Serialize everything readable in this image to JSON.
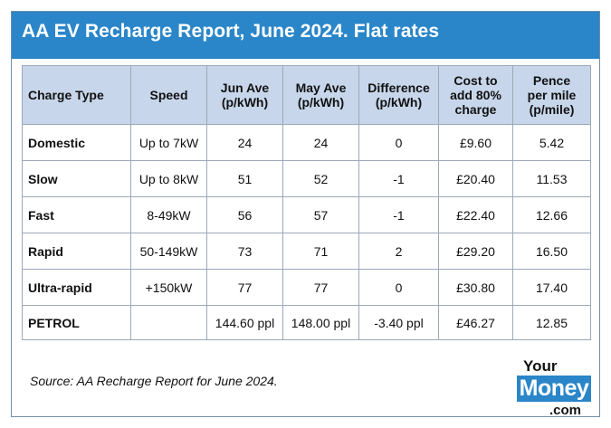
{
  "title": "AA EV Recharge Report, June 2024. Flat rates",
  "table": {
    "headers": [
      {
        "lines": [
          "Charge Type"
        ]
      },
      {
        "lines": [
          "Speed"
        ]
      },
      {
        "lines": [
          "Jun Ave",
          "(p/kWh)"
        ]
      },
      {
        "lines": [
          "May Ave",
          "(p/kWh)"
        ]
      },
      {
        "lines": [
          "Difference",
          "(p/kWh)"
        ]
      },
      {
        "lines": [
          "Cost to",
          "add 80%",
          "charge"
        ]
      },
      {
        "lines": [
          "Pence",
          "per mile",
          "(p/mile)"
        ]
      }
    ],
    "rows": [
      [
        "Domestic",
        "Up to 7kW",
        "24",
        "24",
        "0",
        "£9.60",
        "5.42"
      ],
      [
        "Slow",
        "Up to 8kW",
        "51",
        "52",
        "-1",
        "£20.40",
        "11.53"
      ],
      [
        "Fast",
        "8-49kW",
        "56",
        "57",
        "-1",
        "£22.40",
        "12.66"
      ],
      [
        "Rapid",
        "50-149kW",
        "73",
        "71",
        "2",
        "£29.20",
        "16.50"
      ],
      [
        "Ultra-rapid",
        "+150kW",
        "77",
        "77",
        "0",
        "£30.80",
        "17.40"
      ],
      [
        "PETROL",
        "",
        "144.60 ppl",
        "148.00 ppl",
        "-3.40 ppl",
        "£46.27",
        "12.85"
      ]
    ]
  },
  "source": "Source: AA Recharge Report for June 2024.",
  "logo": {
    "top": "Your",
    "box": "Money",
    "bottom": ".com"
  },
  "colors": {
    "brand_blue": "#2a86c9",
    "header_fill": "#c7d6ea",
    "border": "#9aa9b8"
  }
}
